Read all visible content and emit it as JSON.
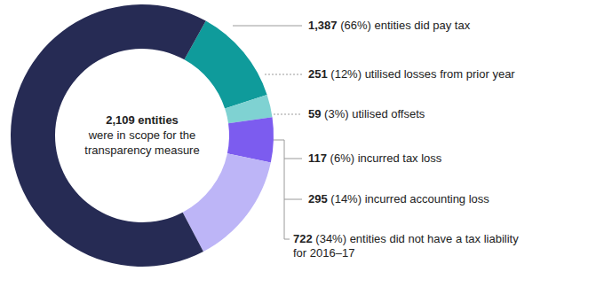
{
  "chart_data": {
    "type": "pie",
    "donut": true,
    "center_total": 2109,
    "center_total_label": "2,109",
    "center_lines": [
      "entities",
      "were in scope for the",
      "transparency measure"
    ],
    "categories": [
      "entities did pay tax",
      "utilised losses from prior year",
      "utilised offsets",
      "incurred tax loss",
      "incurred accounting loss"
    ],
    "values": [
      1387,
      251,
      59,
      117,
      295
    ],
    "value_labels": [
      "1,387",
      "251",
      "59",
      "117",
      "295"
    ],
    "percent_labels": [
      "(66%)",
      "(12%)",
      "(3%)",
      "(6%)",
      "(14%)"
    ],
    "colors": [
      "#262b54",
      "#0f9b9b",
      "#7fd2d2",
      "#7c5cef",
      "#bdb5f7"
    ],
    "group": {
      "value": 722,
      "value_label": "722",
      "percent_label": "(34%)",
      "text_lines": [
        "entities did not have a tax liability",
        "for 2016–17"
      ]
    }
  }
}
